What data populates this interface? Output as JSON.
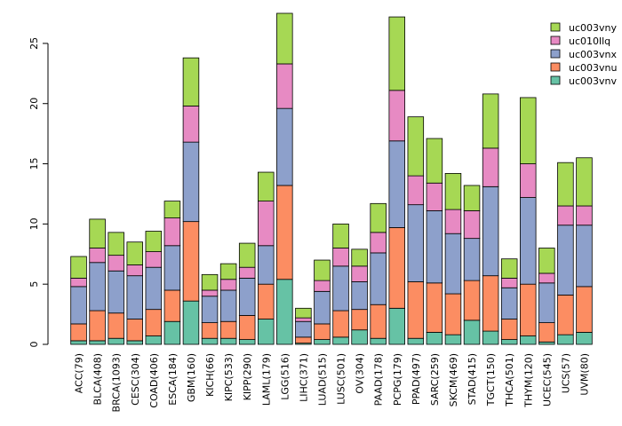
{
  "chart_data": {
    "type": "bar",
    "stacked": true,
    "title": "",
    "xlabel": "",
    "ylabel": "",
    "ylim": [
      0,
      27.5
    ],
    "yticks": [
      0,
      5,
      10,
      15,
      20,
      25
    ],
    "grid": false,
    "legend_position": "top-right",
    "categories": [
      "ACC(79)",
      "BLCA(408)",
      "BRCA(1093)",
      "CESC(304)",
      "COAD(406)",
      "ESCA(184)",
      "GBM(160)",
      "KICH(66)",
      "KIPC(533)",
      "KIPP(290)",
      "LAML(179)",
      "LGG(516)",
      "LIHC(371)",
      "LUAD(515)",
      "LUSC(501)",
      "OV(304)",
      "PAAD(178)",
      "PCPG(179)",
      "PPAD(497)",
      "SARC(259)",
      "SKCM(469)",
      "STAD(415)",
      "TGCT(150)",
      "THCA(501)",
      "THYM(120)",
      "UCEC(545)",
      "UCS(57)",
      "UVM(80)"
    ],
    "series": [
      {
        "name": "uc003vnv",
        "color": "#66c2a5",
        "values": [
          0.3,
          0.3,
          0.5,
          0.3,
          0.7,
          1.9,
          3.6,
          0.5,
          0.5,
          0.4,
          2.1,
          5.4,
          0.1,
          0.4,
          0.6,
          1.2,
          0.5,
          3.0,
          0.5,
          1.0,
          0.8,
          2.0,
          1.1,
          0.4,
          0.7,
          0.2,
          0.8,
          1.0
        ]
      },
      {
        "name": "uc003vnu",
        "color": "#fc8d62",
        "values": [
          1.4,
          2.5,
          2.1,
          1.8,
          2.2,
          2.6,
          6.6,
          1.3,
          1.4,
          2.0,
          2.9,
          7.8,
          0.5,
          1.3,
          2.2,
          1.7,
          2.8,
          6.7,
          4.7,
          4.1,
          3.4,
          3.3,
          4.6,
          1.7,
          4.3,
          1.6,
          3.3,
          3.8
        ]
      },
      {
        "name": "uc003vnx",
        "color": "#8da0cb",
        "values": [
          3.1,
          4.0,
          3.5,
          3.6,
          3.5,
          3.7,
          6.6,
          2.2,
          2.6,
          3.1,
          3.2,
          6.4,
          1.3,
          2.7,
          3.7,
          2.3,
          4.3,
          7.2,
          6.4,
          6.0,
          5.0,
          3.5,
          7.4,
          2.6,
          7.2,
          3.3,
          5.8,
          5.1
        ]
      },
      {
        "name": "uc010llq",
        "color": "#e78ac3",
        "values": [
          0.7,
          1.2,
          1.3,
          0.9,
          1.3,
          2.3,
          3.0,
          0.5,
          0.9,
          0.9,
          3.7,
          3.7,
          0.3,
          0.9,
          1.5,
          1.3,
          1.7,
          4.2,
          2.4,
          2.3,
          2.0,
          2.3,
          3.2,
          0.8,
          2.8,
          0.8,
          1.6,
          1.6
        ]
      },
      {
        "name": "uc003vny",
        "color": "#a6d854",
        "values": [
          1.8,
          2.4,
          1.9,
          1.9,
          1.7,
          1.4,
          4.0,
          1.3,
          1.3,
          2.0,
          2.4,
          4.2,
          0.8,
          1.7,
          2.0,
          1.4,
          2.4,
          6.1,
          4.9,
          3.7,
          3.0,
          2.1,
          4.5,
          1.6,
          5.5,
          2.1,
          3.6,
          4.0
        ]
      }
    ]
  }
}
